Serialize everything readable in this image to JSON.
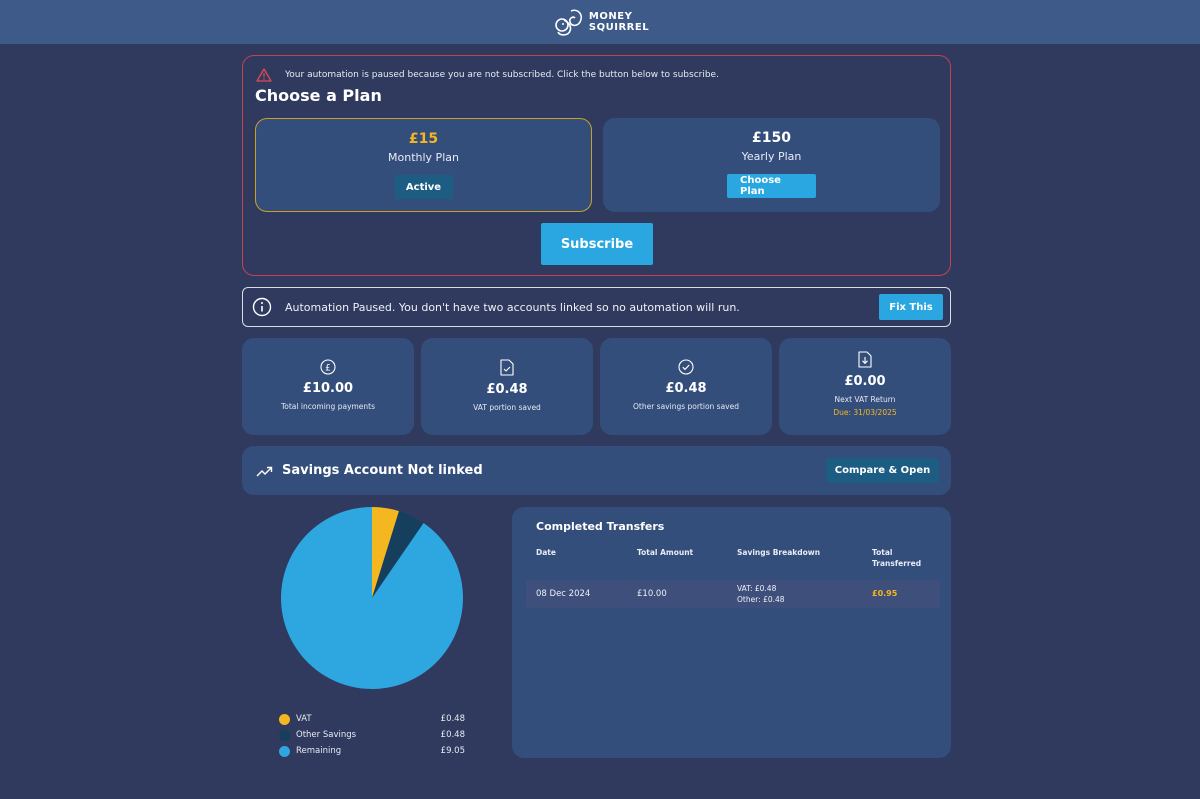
{
  "brand": {
    "line1": "MONEY",
    "line2": "SQUIRREL"
  },
  "subscription": {
    "warning": "Your automation is paused because you are not subscribed. Click the button below to subscribe.",
    "title": "Choose a Plan",
    "plans": [
      {
        "price": "£15",
        "name": "Monthly Plan",
        "button": "Active"
      },
      {
        "price": "£150",
        "name": "Yearly Plan",
        "button": "Choose Plan"
      }
    ],
    "subscribe_label": "Subscribe"
  },
  "automation_banner": {
    "text": "Automation Paused. You don't have two accounts linked so no automation will run.",
    "button": "Fix This"
  },
  "stats": [
    {
      "icon": "pound-icon",
      "value": "£10.00",
      "label": "Total incoming payments"
    },
    {
      "icon": "document-check-icon",
      "value": "£0.48",
      "label": "VAT portion saved"
    },
    {
      "icon": "check-circle-icon",
      "value": "£0.48",
      "label": "Other savings portion saved"
    },
    {
      "icon": "document-download-icon",
      "value": "£0.00",
      "label": "Next VAT Return",
      "due": "Due: 31/03/2025"
    }
  ],
  "savings_bar": {
    "title": "Savings Account Not linked",
    "button": "Compare & Open"
  },
  "breakdown": {
    "colors": {
      "vat": "#f5b720",
      "other": "#163f5e",
      "remaining": "#2ea6e0"
    },
    "legend": [
      {
        "label": "VAT",
        "amount": "£0.48",
        "value": 0.48
      },
      {
        "label": "Other Savings",
        "amount": "£0.48",
        "value": 0.48
      },
      {
        "label": "Remaining",
        "amount": "£9.05",
        "value": 9.05
      }
    ]
  },
  "transfers": {
    "title": "Completed Transfers",
    "headers": {
      "date": "Date",
      "total_amount": "Total Amount",
      "savings": "Savings Breakdown",
      "total_line1": "Total",
      "total_line2": "Transferred"
    },
    "rows": [
      {
        "date": "08 Dec 2024",
        "amount": "£10.00",
        "vat": "VAT: £0.48",
        "other": "Other: £0.48",
        "total": "£0.95"
      }
    ]
  }
}
